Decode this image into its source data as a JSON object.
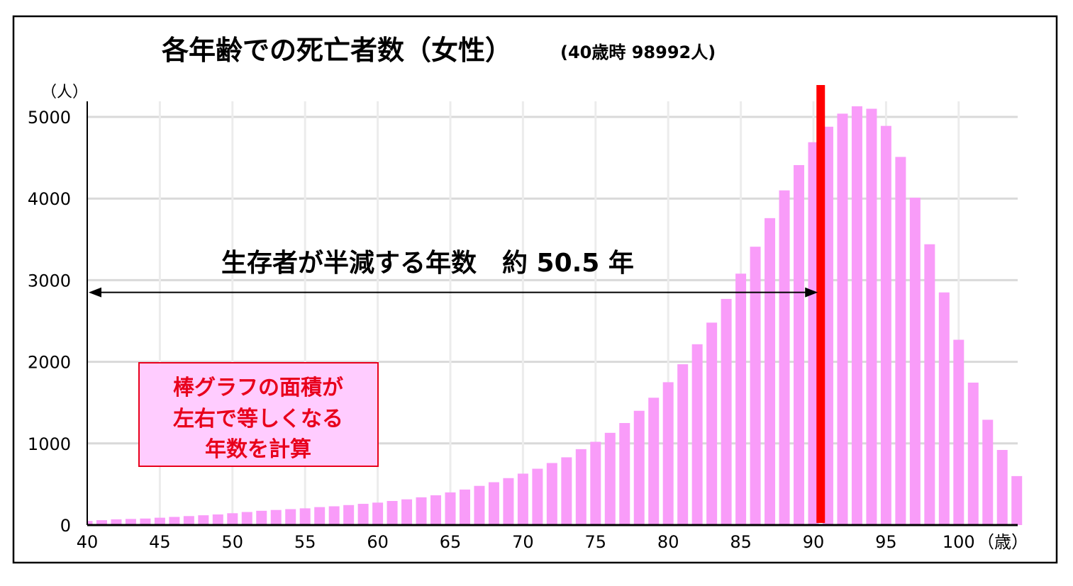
{
  "chart_data": {
    "type": "bar",
    "title": "各年齢での死亡者数（女性）",
    "subtitle": "(40歳時 98992人)",
    "ylabel": "（人）",
    "xlabel": "（歳）",
    "ylim": [
      0,
      5200
    ],
    "xlim": [
      40,
      104
    ],
    "grid": true,
    "x_ticks": [
      "40",
      "45",
      "50",
      "55",
      "60",
      "65",
      "70",
      "75",
      "80",
      "85",
      "90",
      "95",
      "100"
    ],
    "y_ticks": [
      "0",
      "1000",
      "2000",
      "3000",
      "4000",
      "5000"
    ],
    "x": [
      40,
      41,
      42,
      43,
      44,
      45,
      46,
      47,
      48,
      49,
      50,
      51,
      52,
      53,
      54,
      55,
      56,
      57,
      58,
      59,
      60,
      61,
      62,
      63,
      64,
      65,
      66,
      67,
      68,
      69,
      70,
      71,
      72,
      73,
      74,
      75,
      76,
      77,
      78,
      79,
      80,
      81,
      82,
      83,
      84,
      85,
      86,
      87,
      88,
      89,
      90,
      91,
      92,
      93,
      94,
      95,
      96,
      97,
      98,
      99,
      100,
      101,
      102,
      103,
      104
    ],
    "values": [
      50,
      60,
      70,
      75,
      80,
      90,
      100,
      110,
      120,
      130,
      145,
      160,
      175,
      185,
      195,
      205,
      220,
      230,
      245,
      260,
      275,
      295,
      315,
      340,
      365,
      400,
      435,
      480,
      525,
      575,
      630,
      690,
      760,
      830,
      930,
      1020,
      1130,
      1250,
      1400,
      1560,
      1750,
      1970,
      2215,
      2480,
      2770,
      3080,
      3410,
      3760,
      4100,
      4410,
      4690,
      4880,
      5040,
      5130,
      5100,
      4890,
      4510,
      4010,
      3440,
      2850,
      2270,
      1745,
      1290,
      920,
      600
    ],
    "bar_color": "#f99cf9",
    "marker": {
      "age": 90.5,
      "color": "#ff0000"
    },
    "annotations": {
      "arrow_label": "生存者が半減する年数　約 50.5 年",
      "arrow_from": 40,
      "arrow_to": 90.5,
      "arrow_y": 2850,
      "box_lines": [
        "棒グラフの面積が",
        "左右で等しくなる",
        "年数を計算"
      ],
      "box_fill": "#ffccff",
      "box_color": "#e8001c"
    }
  }
}
